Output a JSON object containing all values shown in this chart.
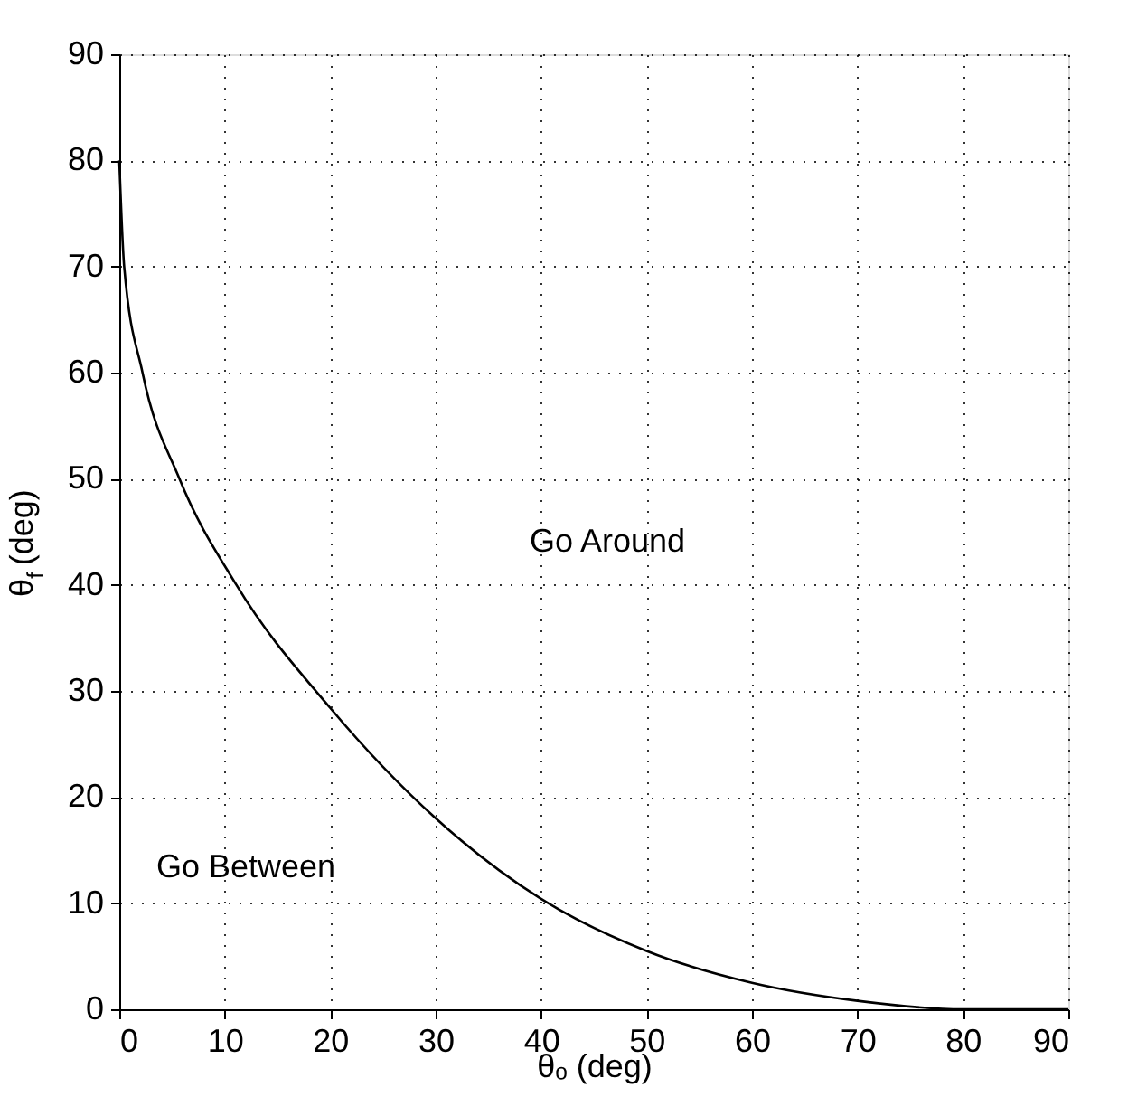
{
  "chart_data": {
    "type": "line",
    "xlabel": "θₒ (deg)",
    "ylabel": "θ$_{f}$ (deg)",
    "xlim": [
      0,
      90
    ],
    "ylim": [
      0,
      90
    ],
    "xticks": [
      0,
      10,
      20,
      30,
      40,
      50,
      60,
      70,
      80,
      90
    ],
    "yticks": [
      0,
      10,
      20,
      30,
      40,
      50,
      60,
      70,
      80,
      90
    ],
    "grid": true,
    "line_style": "solid",
    "marker": "none",
    "series": [
      {
        "color": "#000000",
        "x": [
          0,
          0.46,
          2.2,
          5.7,
          11.1,
          20,
          30,
          40,
          50,
          60,
          70,
          80,
          90
        ],
        "values": [
          80,
          70,
          60,
          50,
          40,
          28.4,
          18,
          10.4,
          5.5,
          2.5,
          0.8,
          0,
          0
        ]
      }
    ],
    "annotations": [
      "Go Around",
      "Go Between"
    ]
  }
}
